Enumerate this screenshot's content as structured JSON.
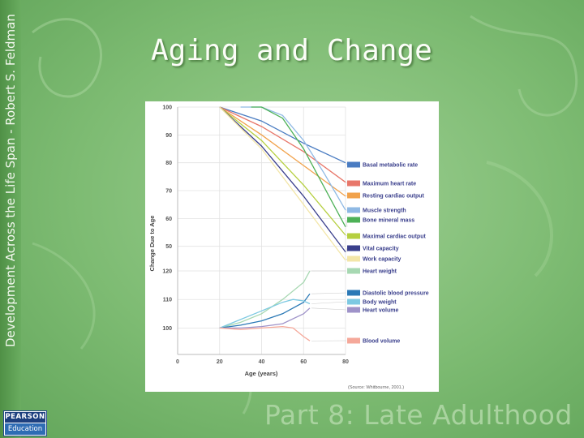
{
  "slide": {
    "title": "Aging and Change",
    "sidebar_text": "Development Across the Life Span - Robert S. Feldman",
    "footer_text": "Part 8: Late Adulthood",
    "logo_top": "PEARSON",
    "logo_bottom": "Education"
  },
  "chart_data": {
    "type": "line",
    "ylabel": "Change Due to Age",
    "xlabel": "Age (years)",
    "source": "(Source: Whitbourne, 2001.)",
    "x_ticks": [
      0,
      20,
      40,
      60,
      80
    ],
    "xlim": [
      0,
      80
    ],
    "upper_panel": {
      "y_ticks": [
        100,
        90,
        80,
        70,
        60,
        50
      ],
      "ylim": [
        47,
        100
      ],
      "series": [
        {
          "name": "Basal metabolic rate",
          "color": "#4a7cc2",
          "points": [
            [
              20,
              100
            ],
            [
              40,
              95
            ],
            [
              60,
              87
            ],
            [
              80,
              80
            ]
          ]
        },
        {
          "name": "Maximum heart rate",
          "color": "#e8776a",
          "points": [
            [
              20,
              100
            ],
            [
              40,
              93
            ],
            [
              60,
              84
            ],
            [
              80,
              73
            ]
          ]
        },
        {
          "name": "Resting cardiac output",
          "color": "#f1a24b",
          "points": [
            [
              20,
              100
            ],
            [
              40,
              90
            ],
            [
              60,
              79
            ],
            [
              80,
              68
            ]
          ]
        },
        {
          "name": "Muscle strength",
          "color": "#8fb9e4",
          "points": [
            [
              30,
              100
            ],
            [
              40,
              100
            ],
            [
              50,
              97
            ],
            [
              60,
              88
            ],
            [
              70,
              76
            ],
            [
              80,
              63
            ]
          ]
        },
        {
          "name": "Bone mineral mass",
          "color": "#4db157",
          "points": [
            [
              35,
              100
            ],
            [
              40,
              100
            ],
            [
              50,
              96
            ],
            [
              60,
              85
            ],
            [
              70,
              71
            ],
            [
              80,
              57
            ]
          ]
        },
        {
          "name": "Maximal cardiac output",
          "color": "#b5cf3f",
          "points": [
            [
              20,
              100
            ],
            [
              40,
              88
            ],
            [
              60,
              72
            ],
            [
              80,
              54
            ]
          ]
        },
        {
          "name": "Vital capacity",
          "color": "#3a3f8c",
          "points": [
            [
              20,
              100
            ],
            [
              40,
              86
            ],
            [
              60,
              68
            ],
            [
              80,
              48
            ]
          ]
        },
        {
          "name": "Work capacity",
          "color": "#f3e6a8",
          "points": [
            [
              20,
              100
            ],
            [
              40,
              85
            ],
            [
              60,
              65
            ],
            [
              80,
              45
            ]
          ]
        }
      ]
    },
    "lower_panel": {
      "y_ticks": [
        120,
        110,
        100
      ],
      "ylim": [
        95,
        122
      ],
      "series": [
        {
          "name": "Heart weight",
          "color": "#a7d8b2",
          "points": [
            [
              20,
              100
            ],
            [
              30,
              102
            ],
            [
              40,
              105
            ],
            [
              50,
              110
            ],
            [
              60,
              116
            ],
            [
              63,
              120
            ]
          ]
        },
        {
          "name": "Diastolic blood pressure",
          "color": "#2b79b6",
          "points": [
            [
              20,
              100
            ],
            [
              30,
              101
            ],
            [
              40,
              102.5
            ],
            [
              50,
              105
            ],
            [
              60,
              109
            ],
            [
              63,
              112
            ]
          ]
        },
        {
          "name": "Body weight",
          "color": "#7ec9e2",
          "points": [
            [
              20,
              100
            ],
            [
              30,
              103
            ],
            [
              40,
              106
            ],
            [
              50,
              109
            ],
            [
              55,
              110
            ],
            [
              60,
              109.5
            ],
            [
              63,
              108.5
            ]
          ]
        },
        {
          "name": "Heart volume",
          "color": "#9f93c9",
          "points": [
            [
              20,
              100
            ],
            [
              30,
              100
            ],
            [
              40,
              100.5
            ],
            [
              50,
              101.5
            ],
            [
              60,
              105
            ],
            [
              63,
              107
            ]
          ]
        },
        {
          "name": "Blood volume",
          "color": "#f5a89a",
          "points": [
            [
              20,
              100
            ],
            [
              30,
              99.5
            ],
            [
              40,
              100
            ],
            [
              50,
              100.5
            ],
            [
              55,
              100
            ],
            [
              60,
              97
            ],
            [
              63,
              95.5
            ]
          ]
        }
      ]
    }
  }
}
